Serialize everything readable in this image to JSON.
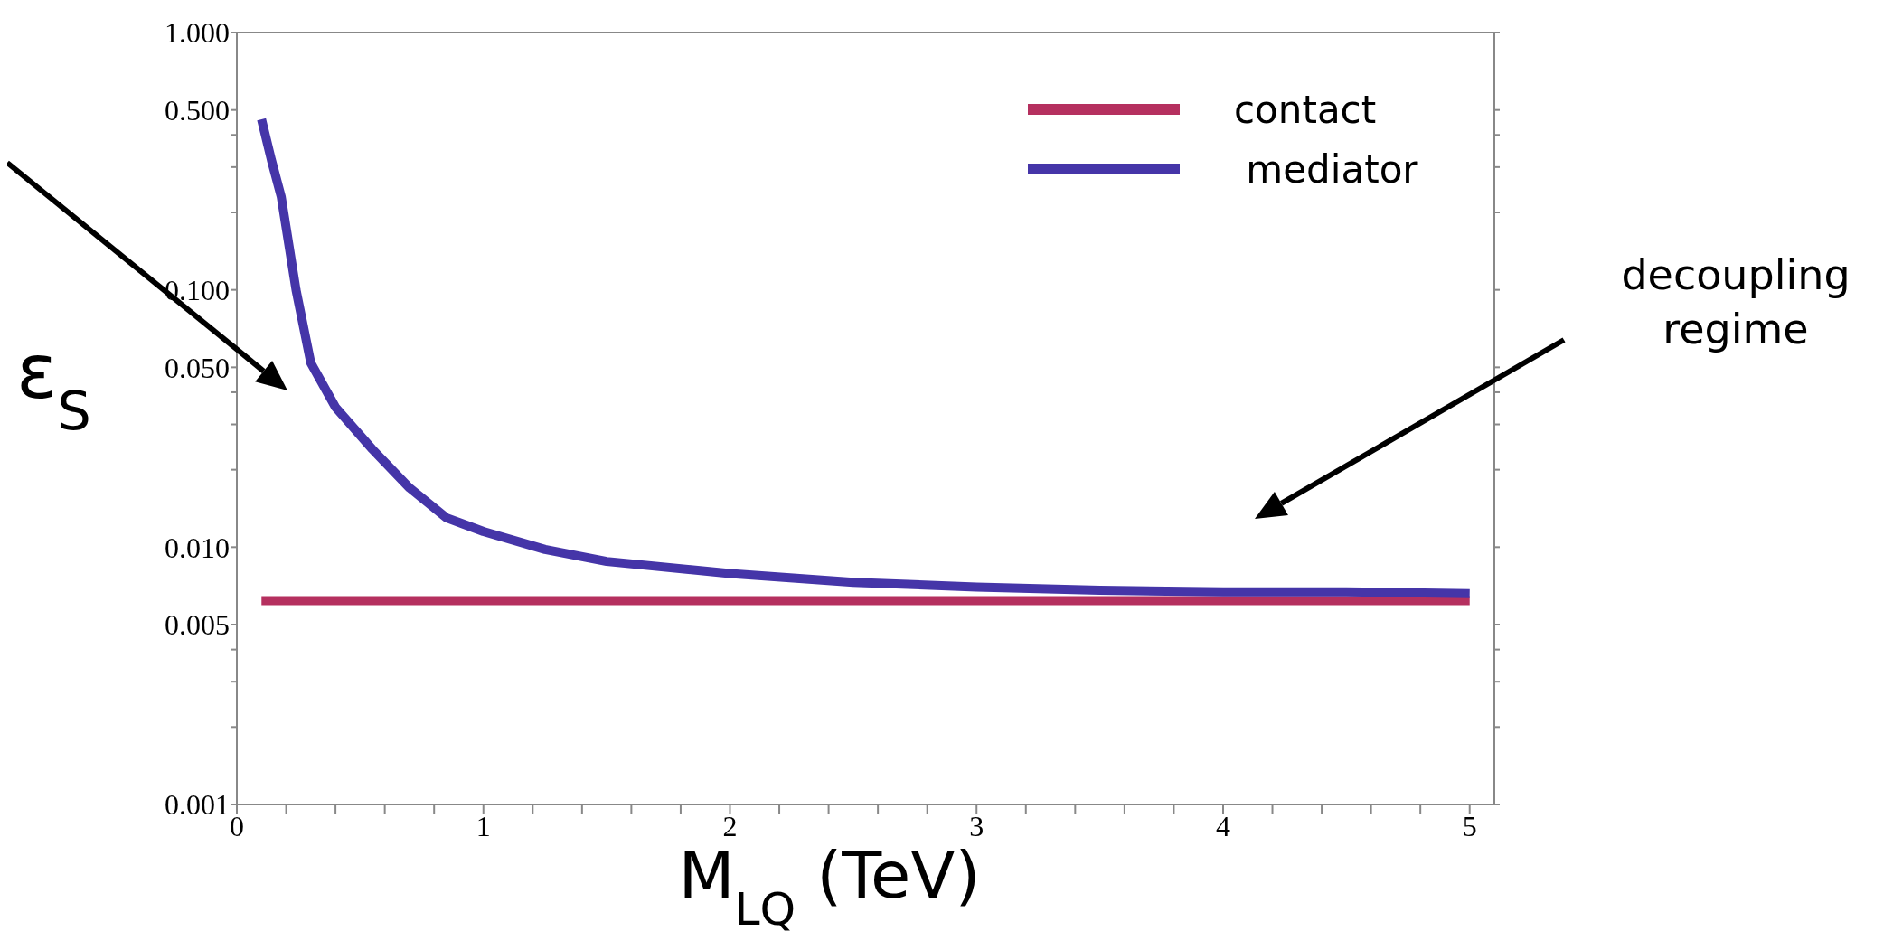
{
  "chart_data": {
    "type": "line",
    "xlabel": "M$_{LQ}$ (TeV)",
    "ylabel": "ε$_{S}$",
    "xlim": [
      0,
      5.1
    ],
    "xticks": [
      0,
      {
        "value": 0.2,
        "label": null
      },
      {
        "value": 0.4,
        "label": null
      },
      {
        "value": 0.6,
        "label": null
      },
      {
        "value": 0.8,
        "label": null
      },
      1,
      {
        "value": 1.2,
        "label": null
      },
      {
        "value": 1.4,
        "label": null
      },
      {
        "value": 1.6,
        "label": null
      },
      {
        "value": 1.8,
        "label": null
      },
      2,
      {
        "value": 2.2,
        "label": null
      },
      {
        "value": 2.4,
        "label": null
      },
      {
        "value": 2.6,
        "label": null
      },
      {
        "value": 2.8,
        "label": null
      },
      3,
      {
        "value": 3.2,
        "label": null
      },
      {
        "value": 3.4,
        "label": null
      },
      {
        "value": 3.6,
        "label": null
      },
      {
        "value": 3.8,
        "label": null
      },
      4,
      {
        "value": 4.2,
        "label": null
      },
      {
        "value": 4.4,
        "label": null
      },
      {
        "value": 4.6,
        "label": null
      },
      {
        "value": 4.8,
        "label": null
      },
      5
    ],
    "ylim": [
      0.001,
      1
    ],
    "log": "y",
    "yticks": [
      {
        "value": 0.001,
        "label": "0.001"
      },
      {
        "value": 0.002,
        "label": null
      },
      {
        "value": 0.003,
        "label": null
      },
      {
        "value": 0.004,
        "label": null
      },
      {
        "value": 0.005,
        "label": "0.005"
      },
      {
        "value": 0.01,
        "label": "0.010"
      },
      {
        "value": 0.02,
        "label": null
      },
      {
        "value": 0.03,
        "label": null
      },
      {
        "value": 0.04,
        "label": null
      },
      {
        "value": 0.05,
        "label": "0.050"
      },
      {
        "value": 0.1,
        "label": "0.100"
      },
      {
        "value": 0.2,
        "label": null
      },
      {
        "value": 0.3,
        "label": null
      },
      {
        "value": 0.4,
        "label": null
      },
      {
        "value": 0.5,
        "label": "0.500"
      },
      {
        "value": 1,
        "label": "1.000"
      }
    ],
    "grid": false,
    "legend": "top right",
    "marker": "none",
    "line_style": "solid",
    "series": [
      {
        "name": "contact",
        "color": "#b5305f",
        "x": [
          0.1,
          5
        ],
        "values": [
          0.0062,
          0.0062
        ]
      },
      {
        "name": " mediator",
        "color": "#4535a8",
        "x": [
          0.1,
          0.14,
          0.18,
          0.24,
          0.3,
          0.4,
          0.55,
          0.7,
          0.85,
          1.0,
          1.25,
          1.5,
          2,
          2.5,
          3,
          3.5,
          4,
          4.5,
          5
        ],
        "values": [
          0.46,
          0.32,
          0.23,
          0.1,
          0.052,
          0.035,
          0.024,
          0.017,
          0.013,
          0.0115,
          0.0098,
          0.0088,
          0.0079,
          0.0073,
          0.007,
          0.0068,
          0.0067,
          0.0067,
          0.0066
        ]
      }
    ],
    "annotations": [
      "decoupling regime"
    ]
  }
}
